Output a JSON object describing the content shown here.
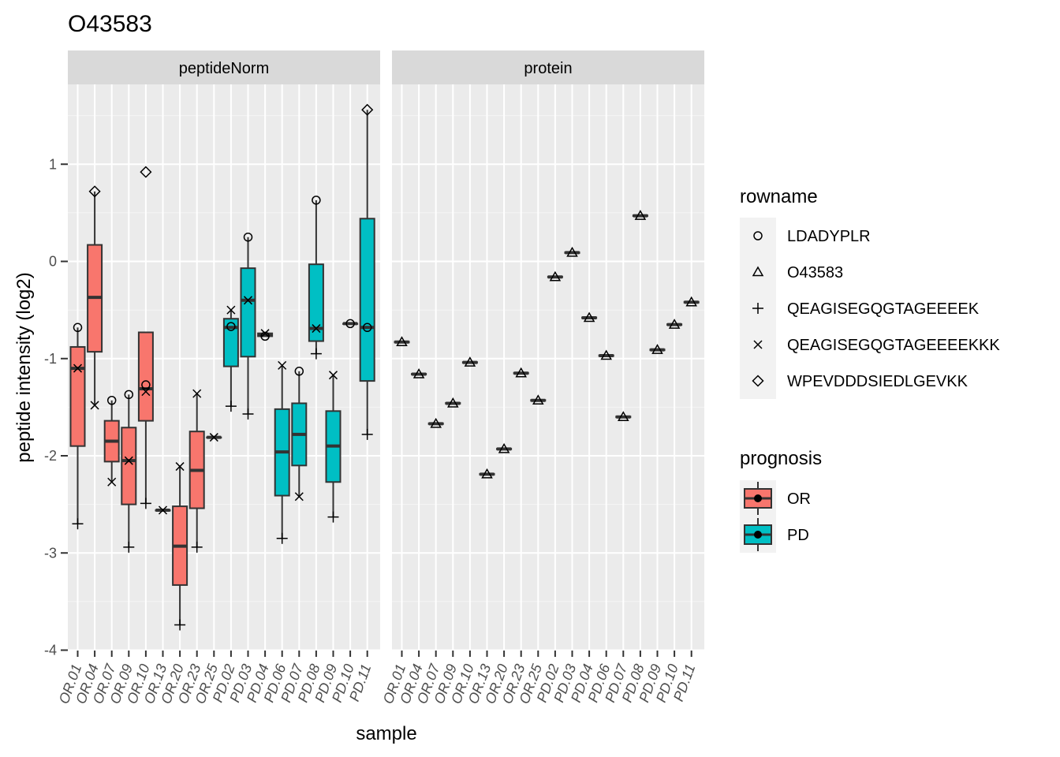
{
  "chart_data": {
    "type": "boxplot",
    "title": "O43583",
    "xlabel": "sample",
    "ylabel": "peptide intensity (log2)",
    "ylim": [
      -4,
      2
    ],
    "yticks": [
      1,
      0,
      -1,
      -2,
      -3,
      -4
    ],
    "grid": true,
    "facets": [
      "peptideNorm",
      "protein"
    ],
    "samples": [
      "OR.01",
      "OR.04",
      "OR.07",
      "OR.09",
      "OR.10",
      "OR.13",
      "OR.20",
      "OR.23",
      "OR.25",
      "PD.02",
      "PD.03",
      "PD.04",
      "PD.06",
      "PD.07",
      "PD.08",
      "PD.09",
      "PD.10",
      "PD.11"
    ],
    "prognosis": [
      "OR",
      "OR",
      "OR",
      "OR",
      "OR",
      "OR",
      "OR",
      "OR",
      "OR",
      "PD",
      "PD",
      "PD",
      "PD",
      "PD",
      "PD",
      "PD",
      "PD",
      "PD"
    ],
    "colors": {
      "OR": "#f8766d",
      "PD": "#00bfc4"
    },
    "legend": {
      "rowname": {
        "title": "rowname",
        "items": [
          {
            "label": "LDADYPLR",
            "shape": "circle"
          },
          {
            "label": "O43583",
            "shape": "triangle"
          },
          {
            "label": "QEAGISEGQGTAGEEEEK",
            "shape": "plus"
          },
          {
            "label": "QEAGISEGQGTAGEEEEKKK",
            "shape": "cross"
          },
          {
            "label": "WPEVDDDSIEDLGEVKK",
            "shape": "diamond"
          }
        ]
      },
      "prognosis": {
        "title": "prognosis",
        "items": [
          {
            "label": "OR",
            "color": "#f8766d"
          },
          {
            "label": "PD",
            "color": "#00bfc4"
          }
        ]
      }
    },
    "peptideNorm": {
      "boxes": [
        {
          "sample": "OR.01",
          "q1": -1.9,
          "median": -1.1,
          "q3": -0.88,
          "lower": -2.7,
          "upper": -0.68
        },
        {
          "sample": "OR.04",
          "q1": -0.93,
          "median": -0.37,
          "q3": 0.17,
          "lower": -1.48,
          "upper": 0.72
        },
        {
          "sample": "OR.07",
          "q1": -2.06,
          "median": -1.85,
          "q3": -1.64,
          "lower": -2.27,
          "upper": -1.43
        },
        {
          "sample": "OR.09",
          "q1": -2.5,
          "median": -2.05,
          "q3": -1.71,
          "lower": -2.94,
          "upper": -1.37
        },
        {
          "sample": "OR.10",
          "q1": -1.64,
          "median": -1.31,
          "q3": -0.73,
          "lower": -2.49,
          "upper": -0.73
        },
        {
          "sample": "OR.13",
          "q1": -2.56,
          "median": -2.56,
          "q3": -2.56,
          "lower": -2.56,
          "upper": -2.56
        },
        {
          "sample": "OR.20",
          "q1": -3.33,
          "median": -2.93,
          "q3": -2.52,
          "lower": -3.74,
          "upper": -2.11
        },
        {
          "sample": "OR.23",
          "q1": -2.54,
          "median": -2.15,
          "q3": -1.75,
          "lower": -2.94,
          "upper": -1.36
        },
        {
          "sample": "OR.25",
          "q1": -1.81,
          "median": -1.81,
          "q3": -1.81,
          "lower": -1.81,
          "upper": -1.81
        },
        {
          "sample": "PD.02",
          "q1": -1.08,
          "median": -0.68,
          "q3": -0.59,
          "lower": -1.49,
          "upper": -0.5
        },
        {
          "sample": "PD.03",
          "q1": -0.98,
          "median": -0.4,
          "q3": -0.07,
          "lower": -1.57,
          "upper": 0.25
        },
        {
          "sample": "PD.04",
          "q1": -0.77,
          "median": -0.75,
          "q3": -0.74,
          "lower": -0.77,
          "upper": -0.74
        },
        {
          "sample": "PD.06",
          "q1": -2.41,
          "median": -1.96,
          "q3": -1.52,
          "lower": -2.85,
          "upper": -1.07
        },
        {
          "sample": "PD.07",
          "q1": -2.1,
          "median": -1.78,
          "q3": -1.46,
          "lower": -2.42,
          "upper": -1.13
        },
        {
          "sample": "PD.08",
          "q1": -0.82,
          "median": -0.69,
          "q3": -0.03,
          "lower": -0.95,
          "upper": 0.63
        },
        {
          "sample": "PD.09",
          "q1": -2.27,
          "median": -1.9,
          "q3": -1.54,
          "lower": -2.63,
          "upper": -1.17
        },
        {
          "sample": "PD.10",
          "q1": -0.64,
          "median": -0.64,
          "q3": -0.64,
          "lower": -0.64,
          "upper": -0.64
        },
        {
          "sample": "PD.11",
          "q1": -1.23,
          "median": -0.68,
          "q3": 0.44,
          "lower": -1.78,
          "upper": 1.56
        }
      ],
      "points": [
        {
          "sample": "OR.01",
          "shape": "circle",
          "y": -0.68
        },
        {
          "sample": "OR.01",
          "shape": "cross",
          "y": -1.1
        },
        {
          "sample": "OR.01",
          "shape": "plus",
          "y": -2.7
        },
        {
          "sample": "OR.04",
          "shape": "diamond",
          "y": 0.72
        },
        {
          "sample": "OR.04",
          "shape": "cross",
          "y": -1.48
        },
        {
          "sample": "OR.07",
          "shape": "circle",
          "y": -1.43
        },
        {
          "sample": "OR.07",
          "shape": "cross",
          "y": -2.27
        },
        {
          "sample": "OR.09",
          "shape": "circle",
          "y": -1.37
        },
        {
          "sample": "OR.09",
          "shape": "cross",
          "y": -2.05
        },
        {
          "sample": "OR.09",
          "shape": "plus",
          "y": -2.94
        },
        {
          "sample": "OR.10",
          "shape": "diamond",
          "y": 0.92
        },
        {
          "sample": "OR.10",
          "shape": "circle",
          "y": -1.27
        },
        {
          "sample": "OR.10",
          "shape": "cross",
          "y": -1.34
        },
        {
          "sample": "OR.10",
          "shape": "plus",
          "y": -2.49
        },
        {
          "sample": "OR.13",
          "shape": "cross",
          "y": -2.56
        },
        {
          "sample": "OR.20",
          "shape": "cross",
          "y": -2.11
        },
        {
          "sample": "OR.20",
          "shape": "plus",
          "y": -3.74
        },
        {
          "sample": "OR.23",
          "shape": "cross",
          "y": -1.36
        },
        {
          "sample": "OR.23",
          "shape": "plus",
          "y": -2.94
        },
        {
          "sample": "OR.25",
          "shape": "cross",
          "y": -1.81
        },
        {
          "sample": "PD.02",
          "shape": "cross",
          "y": -0.5
        },
        {
          "sample": "PD.02",
          "shape": "circle",
          "y": -0.67
        },
        {
          "sample": "PD.02",
          "shape": "plus",
          "y": -1.49
        },
        {
          "sample": "PD.03",
          "shape": "circle",
          "y": 0.25
        },
        {
          "sample": "PD.03",
          "shape": "cross",
          "y": -0.4
        },
        {
          "sample": "PD.03",
          "shape": "plus",
          "y": -1.57
        },
        {
          "sample": "PD.04",
          "shape": "cross",
          "y": -0.74
        },
        {
          "sample": "PD.04",
          "shape": "circle",
          "y": -0.77
        },
        {
          "sample": "PD.06",
          "shape": "cross",
          "y": -1.07
        },
        {
          "sample": "PD.06",
          "shape": "plus",
          "y": -2.85
        },
        {
          "sample": "PD.07",
          "shape": "circle",
          "y": -1.13
        },
        {
          "sample": "PD.07",
          "shape": "cross",
          "y": -2.42
        },
        {
          "sample": "PD.08",
          "shape": "circle",
          "y": 0.63
        },
        {
          "sample": "PD.08",
          "shape": "cross",
          "y": -0.69
        },
        {
          "sample": "PD.08",
          "shape": "plus",
          "y": -0.95
        },
        {
          "sample": "PD.09",
          "shape": "cross",
          "y": -1.17
        },
        {
          "sample": "PD.09",
          "shape": "plus",
          "y": -2.63
        },
        {
          "sample": "PD.10",
          "shape": "circle",
          "y": -0.64
        },
        {
          "sample": "PD.11",
          "shape": "diamond",
          "y": 1.56
        },
        {
          "sample": "PD.11",
          "shape": "circle",
          "y": -0.68
        },
        {
          "sample": "PD.11",
          "shape": "plus",
          "y": -1.78
        }
      ]
    },
    "protein": {
      "values": [
        -0.83,
        -1.16,
        -1.67,
        -1.46,
        -1.04,
        -2.19,
        -1.93,
        -1.15,
        -1.43,
        -0.16,
        0.09,
        -0.58,
        -0.97,
        -1.6,
        0.47,
        -0.91,
        -0.65,
        -0.42
      ]
    }
  }
}
